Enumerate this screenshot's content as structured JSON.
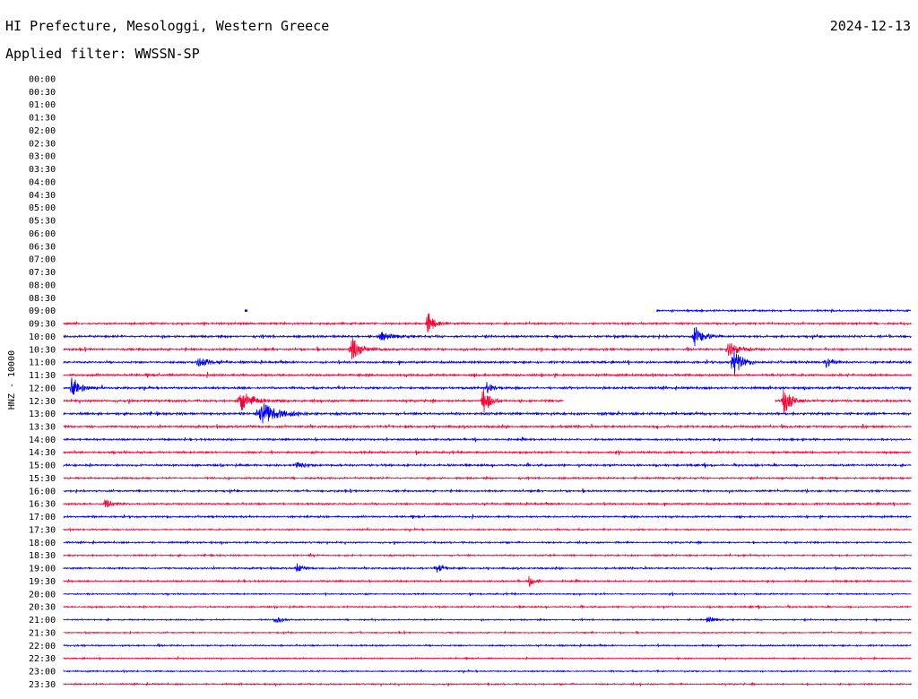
{
  "header": {
    "station": "HI Prefecture, Mesologgi, Western Greece",
    "filter": "Applied filter: WWSSN-SP",
    "date": "2024-12-13"
  },
  "chart_data": {
    "type": "line",
    "ylabel": "HNZ - 10000",
    "row_labels": [
      "00:00",
      "00:30",
      "01:00",
      "01:30",
      "02:00",
      "02:30",
      "03:00",
      "03:30",
      "04:00",
      "04:30",
      "05:00",
      "05:30",
      "06:00",
      "06:30",
      "07:00",
      "07:30",
      "08:00",
      "08:30",
      "09:00",
      "09:30",
      "10:00",
      "10:30",
      "11:00",
      "11:30",
      "12:00",
      "12:30",
      "13:00",
      "13:30",
      "14:00",
      "14:30",
      "15:00",
      "15:30",
      "16:00",
      "16:30",
      "17:00",
      "17:30",
      "18:00",
      "18:30",
      "19:00",
      "19:30",
      "20:00",
      "20:30",
      "21:00",
      "21:30",
      "22:00",
      "22:30",
      "23:00",
      "23:30"
    ],
    "trace_colors": [
      "#0000ff",
      "#ff0033"
    ],
    "traces": [
      {
        "row": 18,
        "start": 0.7,
        "end": 1.0,
        "noise": 1.2
      },
      {
        "row": 19,
        "start": 0,
        "end": 1,
        "noise": 1.3
      },
      {
        "row": 20,
        "start": 0,
        "end": 1,
        "noise": 1.5
      },
      {
        "row": 21,
        "start": 0,
        "end": 1,
        "noise": 1.4
      },
      {
        "row": 22,
        "start": 0,
        "end": 1,
        "noise": 1.4
      },
      {
        "row": 23,
        "start": 0,
        "end": 1,
        "noise": 1.5
      },
      {
        "row": 24,
        "start": 0,
        "end": 1,
        "noise": 1.5
      },
      {
        "row": 25,
        "start": 0,
        "end": 0.59,
        "noise": 1.5
      },
      {
        "row": 25,
        "start": 0.84,
        "end": 1,
        "noise": 1.5
      },
      {
        "row": 26,
        "start": 0,
        "end": 1,
        "noise": 1.6
      },
      {
        "row": 27,
        "start": 0,
        "end": 1,
        "noise": 1.4
      },
      {
        "row": 28,
        "start": 0,
        "end": 1,
        "noise": 1.2
      },
      {
        "row": 29,
        "start": 0,
        "end": 1,
        "noise": 1.3
      },
      {
        "row": 30,
        "start": 0,
        "end": 1,
        "noise": 1.3
      },
      {
        "row": 31,
        "start": 0,
        "end": 1,
        "noise": 1.2
      },
      {
        "row": 32,
        "start": 0,
        "end": 1,
        "noise": 1.2
      },
      {
        "row": 33,
        "start": 0,
        "end": 1,
        "noise": 1.2
      },
      {
        "row": 34,
        "start": 0,
        "end": 1,
        "noise": 1.2
      },
      {
        "row": 35,
        "start": 0,
        "end": 1,
        "noise": 1.0
      },
      {
        "row": 36,
        "start": 0,
        "end": 1,
        "noise": 1.1
      },
      {
        "row": 37,
        "start": 0,
        "end": 1,
        "noise": 1.0
      },
      {
        "row": 38,
        "start": 0,
        "end": 1,
        "noise": 1.1
      },
      {
        "row": 39,
        "start": 0,
        "end": 1,
        "noise": 1.0
      },
      {
        "row": 40,
        "start": 0,
        "end": 1,
        "noise": 0.9
      },
      {
        "row": 41,
        "start": 0,
        "end": 1,
        "noise": 1.0
      },
      {
        "row": 42,
        "start": 0,
        "end": 1,
        "noise": 0.9
      },
      {
        "row": 43,
        "start": 0,
        "end": 1,
        "noise": 0.8
      },
      {
        "row": 44,
        "start": 0,
        "end": 1,
        "noise": 1.0
      },
      {
        "row": 45,
        "start": 0,
        "end": 1,
        "noise": 0.8
      },
      {
        "row": 46,
        "start": 0,
        "end": 1,
        "noise": 0.9
      },
      {
        "row": 47,
        "start": 0,
        "end": 1,
        "noise": 1.0
      }
    ],
    "events": [
      {
        "row": 19,
        "pos": 0.43,
        "amp": 12,
        "width": 0.012
      },
      {
        "row": 20,
        "pos": 0.375,
        "amp": 5,
        "width": 0.02
      },
      {
        "row": 20,
        "pos": 0.745,
        "amp": 12,
        "width": 0.014
      },
      {
        "row": 21,
        "pos": 0.34,
        "amp": 13,
        "width": 0.016
      },
      {
        "row": 21,
        "pos": 0.785,
        "amp": 8,
        "width": 0.02
      },
      {
        "row": 22,
        "pos": 0.16,
        "amp": 6,
        "width": 0.018
      },
      {
        "row": 22,
        "pos": 0.79,
        "amp": 18,
        "width": 0.014
      },
      {
        "row": 22,
        "pos": 0.9,
        "amp": 5,
        "width": 0.012
      },
      {
        "row": 24,
        "pos": 0.01,
        "amp": 14,
        "width": 0.014
      },
      {
        "row": 24,
        "pos": 0.5,
        "amp": 6,
        "width": 0.012
      },
      {
        "row": 25,
        "pos": 0.21,
        "amp": 10,
        "width": 0.025
      },
      {
        "row": 25,
        "pos": 0.495,
        "amp": 22,
        "width": 0.01
      },
      {
        "row": 25,
        "pos": 0.85,
        "amp": 18,
        "width": 0.012
      },
      {
        "row": 26,
        "pos": 0.235,
        "amp": 12,
        "width": 0.03
      },
      {
        "row": 30,
        "pos": 0.275,
        "amp": 4,
        "width": 0.014
      },
      {
        "row": 33,
        "pos": 0.05,
        "amp": 4,
        "width": 0.012
      },
      {
        "row": 38,
        "pos": 0.275,
        "amp": 5,
        "width": 0.01
      },
      {
        "row": 38,
        "pos": 0.44,
        "amp": 5,
        "width": 0.012
      },
      {
        "row": 39,
        "pos": 0.55,
        "amp": 5,
        "width": 0.01
      },
      {
        "row": 42,
        "pos": 0.25,
        "amp": 4,
        "width": 0.012
      },
      {
        "row": 42,
        "pos": 0.76,
        "amp": 4,
        "width": 0.012
      }
    ]
  }
}
